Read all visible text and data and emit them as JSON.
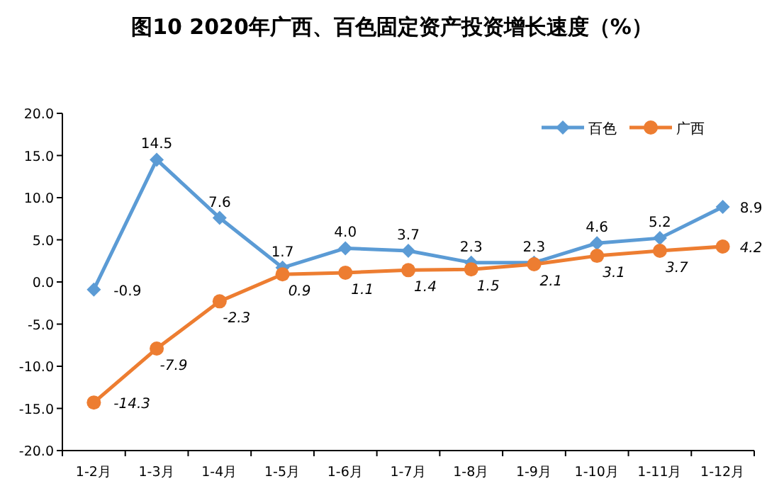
{
  "chart_data": {
    "type": "line",
    "title": "图10  2020年广西、百色固定资产投资增长速度（%）",
    "categories": [
      "1-2月",
      "1-3月",
      "1-4月",
      "1-5月",
      "1-6月",
      "1-7月",
      "1-8月",
      "1-9月",
      "1-10月",
      "1-11月",
      "1-12月"
    ],
    "series": [
      {
        "name": "百色",
        "color": "#5b9bd5",
        "marker": "diamond",
        "values": [
          -0.9,
          14.5,
          7.6,
          1.7,
          4.0,
          3.7,
          2.3,
          2.3,
          4.6,
          5.2,
          8.9
        ],
        "value_labels": [
          "-0.9",
          "14.5",
          "7.6",
          "1.7",
          "4.0",
          "3.7",
          "2.3",
          "2.3",
          "4.6",
          "5.2",
          "8.9"
        ]
      },
      {
        "name": "广西",
        "color": "#ed7d31",
        "marker": "circle",
        "values": [
          -14.3,
          -7.9,
          -2.3,
          0.9,
          1.1,
          1.4,
          1.5,
          2.1,
          3.1,
          3.7,
          4.2
        ],
        "value_labels": [
          "-14.3",
          "-7.9",
          "-2.3",
          "0.9",
          "1.1",
          "1.4",
          "1.5",
          "2.1",
          "3.1",
          "3.7",
          "4.2"
        ]
      }
    ],
    "ylim": [
      -20,
      20
    ],
    "yticks": [
      {
        "value": -20,
        "label": "-20.0"
      },
      {
        "value": -15,
        "label": "-15.0"
      },
      {
        "value": -10,
        "label": "-10.0"
      },
      {
        "value": -5,
        "label": "-5.0"
      },
      {
        "value": 0,
        "label": "0.0"
      },
      {
        "value": 5,
        "label": "5.0"
      },
      {
        "value": 10,
        "label": "10.0"
      },
      {
        "value": 15,
        "label": "15.0"
      },
      {
        "value": 20,
        "label": "20.0"
      }
    ],
    "grid": false,
    "legend": "top right",
    "line_style": "solid"
  }
}
